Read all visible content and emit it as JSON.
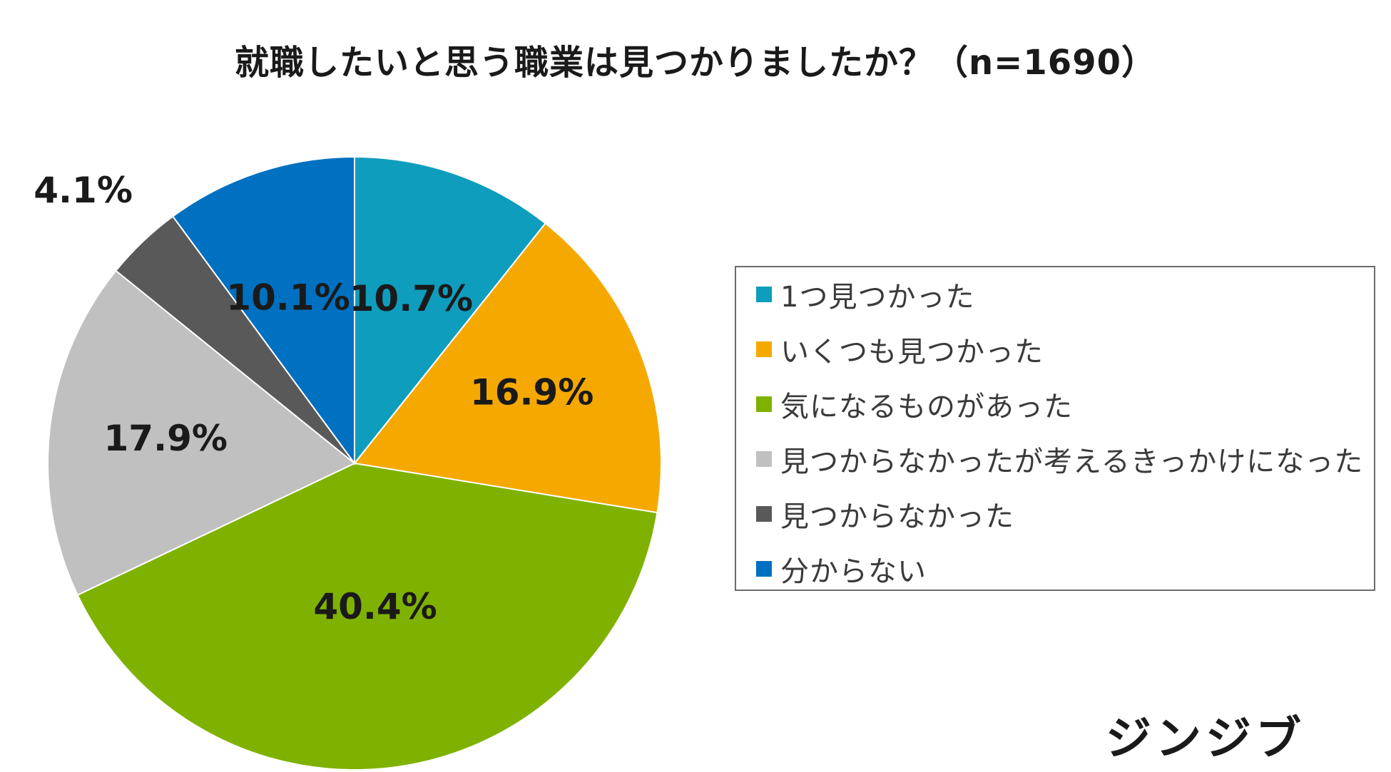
{
  "chart_data": {
    "type": "pie",
    "title": "就職したいと思う職業は見つかりましたか？（n=1690）",
    "slices": [
      {
        "label": "1つ見つかった",
        "value": 10.7,
        "display": "10.7%",
        "color": "#0f9dbd"
      },
      {
        "label": "いくつも見つかった",
        "value": 16.9,
        "display": "16.9%",
        "color": "#f5a800"
      },
      {
        "label": "気になるものがあった",
        "value": 40.4,
        "display": "40.4%",
        "color": "#7fb200"
      },
      {
        "label": "見つからなかったが考えるきっかけになった",
        "value": 17.9,
        "display": "17.9%",
        "color": "#c0c0c0"
      },
      {
        "label": "見つからなかった",
        "value": 4.1,
        "display": "4.1%",
        "color": "#595959"
      },
      {
        "label": "分からない",
        "value": 10.1,
        "display": "10.1%",
        "color": "#0070c0"
      }
    ],
    "start_angle_deg": 0,
    "direction": "clockwise",
    "legend_position": "right"
  },
  "brand": {
    "logo_text": "ジンジブ"
  }
}
